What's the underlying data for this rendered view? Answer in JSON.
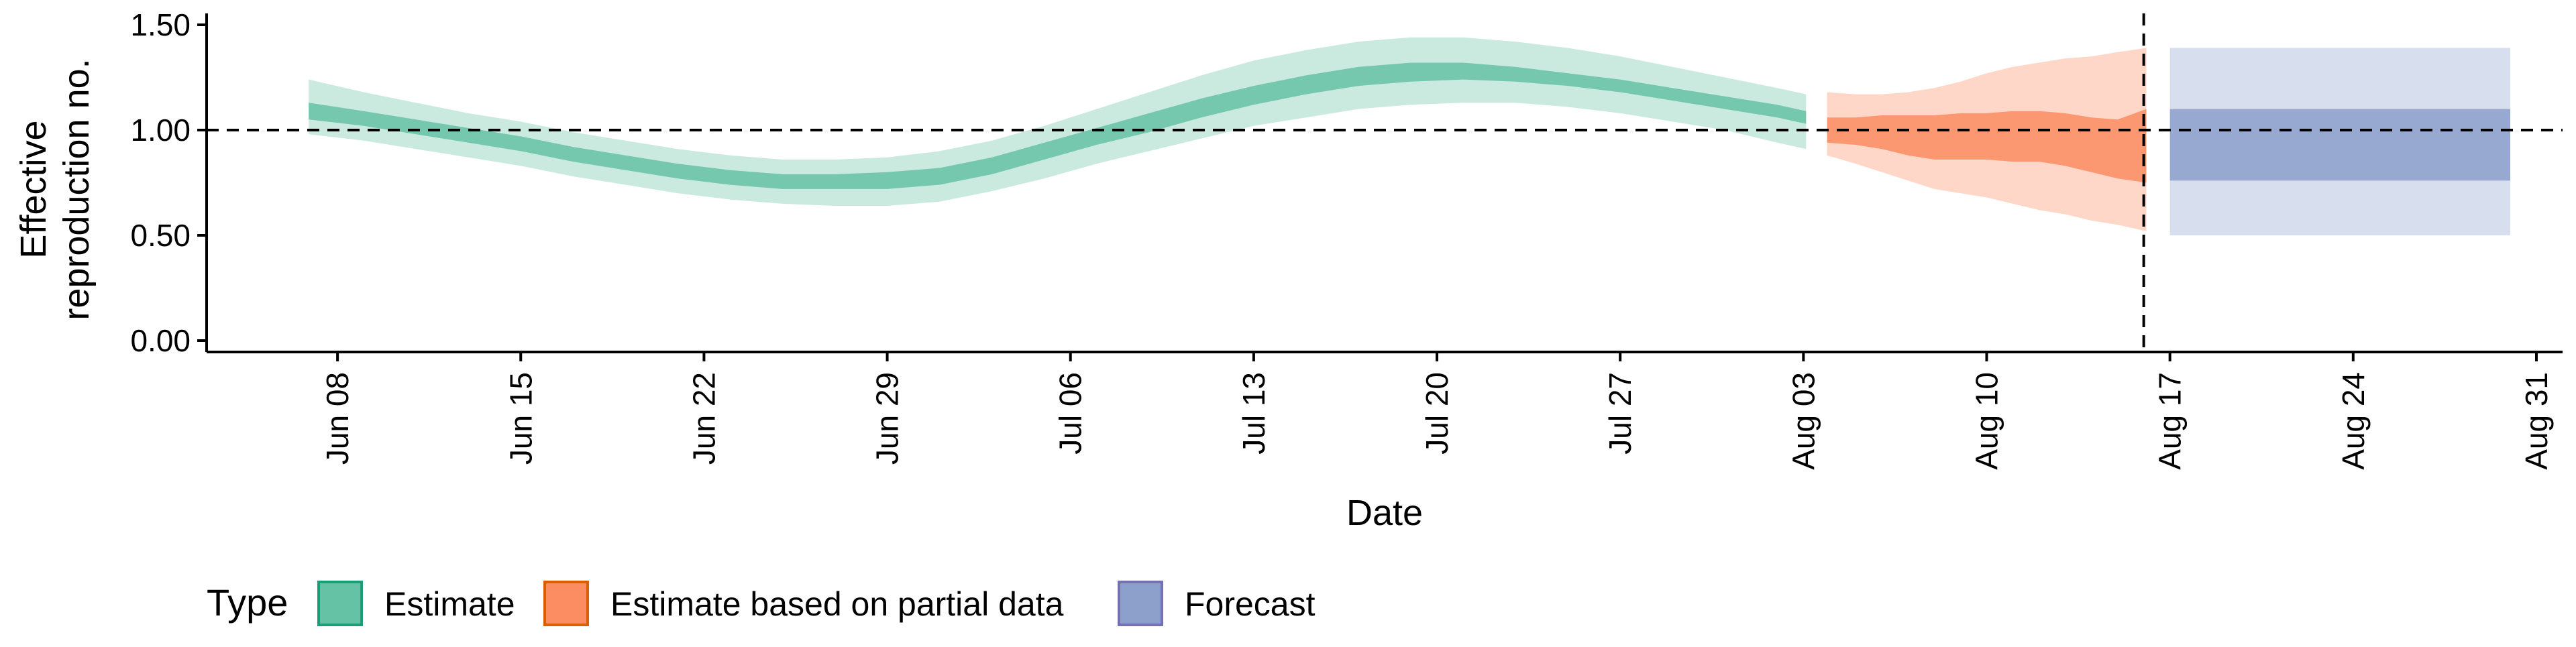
{
  "chart_data": {
    "type": "area",
    "xlabel": "Date",
    "ylabel_lines": [
      "Effective",
      "reproduction no."
    ],
    "x_domain": [
      "2020-06-03",
      "2020-09-01"
    ],
    "ylim": [
      0,
      1.5
    ],
    "y_ticks": [
      {
        "value": 0.0,
        "label": "0.00"
      },
      {
        "value": 0.5,
        "label": "0.50"
      },
      {
        "value": 1.0,
        "label": "1.00"
      },
      {
        "value": 1.5,
        "label": "1.50"
      }
    ],
    "x_ticks": [
      {
        "date": "2020-06-08",
        "label": "Jun 08"
      },
      {
        "date": "2020-06-15",
        "label": "Jun 15"
      },
      {
        "date": "2020-06-22",
        "label": "Jun 22"
      },
      {
        "date": "2020-06-29",
        "label": "Jun 29"
      },
      {
        "date": "2020-07-06",
        "label": "Jul 06"
      },
      {
        "date": "2020-07-13",
        "label": "Jul 13"
      },
      {
        "date": "2020-07-20",
        "label": "Jul 20"
      },
      {
        "date": "2020-07-27",
        "label": "Jul 27"
      },
      {
        "date": "2020-08-03",
        "label": "Aug 03"
      },
      {
        "date": "2020-08-10",
        "label": "Aug 10"
      },
      {
        "date": "2020-08-17",
        "label": "Aug 17"
      },
      {
        "date": "2020-08-24",
        "label": "Aug 24"
      },
      {
        "date": "2020-08-31",
        "label": "Aug 31"
      }
    ],
    "reference_line_y": 1.0,
    "vertical_line_date": "2020-08-16",
    "grid": false,
    "legend_position": "bottom-left",
    "legend_title": "Type",
    "series": [
      {
        "name": "Estimate",
        "color": "#66c2a5",
        "dates": [
          "2020-06-07",
          "2020-06-09",
          "2020-06-11",
          "2020-06-13",
          "2020-06-15",
          "2020-06-17",
          "2020-06-19",
          "2020-06-21",
          "2020-06-23",
          "2020-06-25",
          "2020-06-27",
          "2020-06-29",
          "2020-07-01",
          "2020-07-03",
          "2020-07-05",
          "2020-07-07",
          "2020-07-09",
          "2020-07-11",
          "2020-07-13",
          "2020-07-15",
          "2020-07-17",
          "2020-07-19",
          "2020-07-21",
          "2020-07-23",
          "2020-07-25",
          "2020-07-27",
          "2020-07-29",
          "2020-07-31",
          "2020-08-02",
          "2020-08-03"
        ],
        "lower90": [
          0.98,
          0.95,
          0.91,
          0.87,
          0.83,
          0.78,
          0.74,
          0.7,
          0.67,
          0.65,
          0.64,
          0.64,
          0.66,
          0.71,
          0.77,
          0.84,
          0.9,
          0.96,
          1.02,
          1.06,
          1.1,
          1.12,
          1.13,
          1.13,
          1.11,
          1.08,
          1.04,
          1.0,
          0.94,
          0.91
        ],
        "lower50": [
          1.05,
          1.02,
          0.98,
          0.94,
          0.9,
          0.85,
          0.81,
          0.77,
          0.74,
          0.72,
          0.72,
          0.72,
          0.74,
          0.79,
          0.86,
          0.93,
          0.99,
          1.06,
          1.12,
          1.17,
          1.21,
          1.23,
          1.24,
          1.23,
          1.21,
          1.18,
          1.14,
          1.1,
          1.06,
          1.03
        ],
        "upper50": [
          1.13,
          1.09,
          1.05,
          1.01,
          0.97,
          0.92,
          0.88,
          0.84,
          0.81,
          0.79,
          0.79,
          0.8,
          0.82,
          0.87,
          0.94,
          1.01,
          1.08,
          1.15,
          1.21,
          1.26,
          1.3,
          1.32,
          1.32,
          1.3,
          1.27,
          1.24,
          1.2,
          1.16,
          1.12,
          1.09
        ],
        "upper90": [
          1.24,
          1.18,
          1.13,
          1.08,
          1.04,
          0.99,
          0.95,
          0.91,
          0.88,
          0.86,
          0.86,
          0.87,
          0.9,
          0.95,
          1.02,
          1.1,
          1.18,
          1.26,
          1.33,
          1.38,
          1.42,
          1.44,
          1.44,
          1.42,
          1.39,
          1.35,
          1.3,
          1.25,
          1.2,
          1.17
        ]
      },
      {
        "name": "Estimate based on partial data",
        "color": "#fc8d62",
        "dates": [
          "2020-08-04",
          "2020-08-05",
          "2020-08-06",
          "2020-08-07",
          "2020-08-08",
          "2020-08-09",
          "2020-08-10",
          "2020-08-11",
          "2020-08-12",
          "2020-08-13",
          "2020-08-14",
          "2020-08-15",
          "2020-08-16"
        ],
        "lower90": [
          0.88,
          0.84,
          0.8,
          0.76,
          0.72,
          0.7,
          0.68,
          0.65,
          0.62,
          0.6,
          0.57,
          0.55,
          0.52
        ],
        "lower50": [
          0.94,
          0.93,
          0.91,
          0.88,
          0.86,
          0.86,
          0.86,
          0.85,
          0.85,
          0.83,
          0.8,
          0.77,
          0.75
        ],
        "upper50": [
          1.06,
          1.06,
          1.07,
          1.07,
          1.07,
          1.08,
          1.08,
          1.09,
          1.09,
          1.08,
          1.06,
          1.05,
          1.1
        ],
        "upper90": [
          1.18,
          1.17,
          1.17,
          1.18,
          1.2,
          1.23,
          1.27,
          1.3,
          1.32,
          1.34,
          1.35,
          1.37,
          1.39
        ]
      },
      {
        "name": "Forecast",
        "color": "#8da0cb",
        "dates": [
          "2020-08-17",
          "2020-08-30"
        ],
        "lower90": [
          0.5,
          0.5
        ],
        "lower50": [
          0.76,
          0.76
        ],
        "upper50": [
          1.1,
          1.1
        ],
        "upper90": [
          1.39,
          1.39
        ]
      }
    ]
  }
}
